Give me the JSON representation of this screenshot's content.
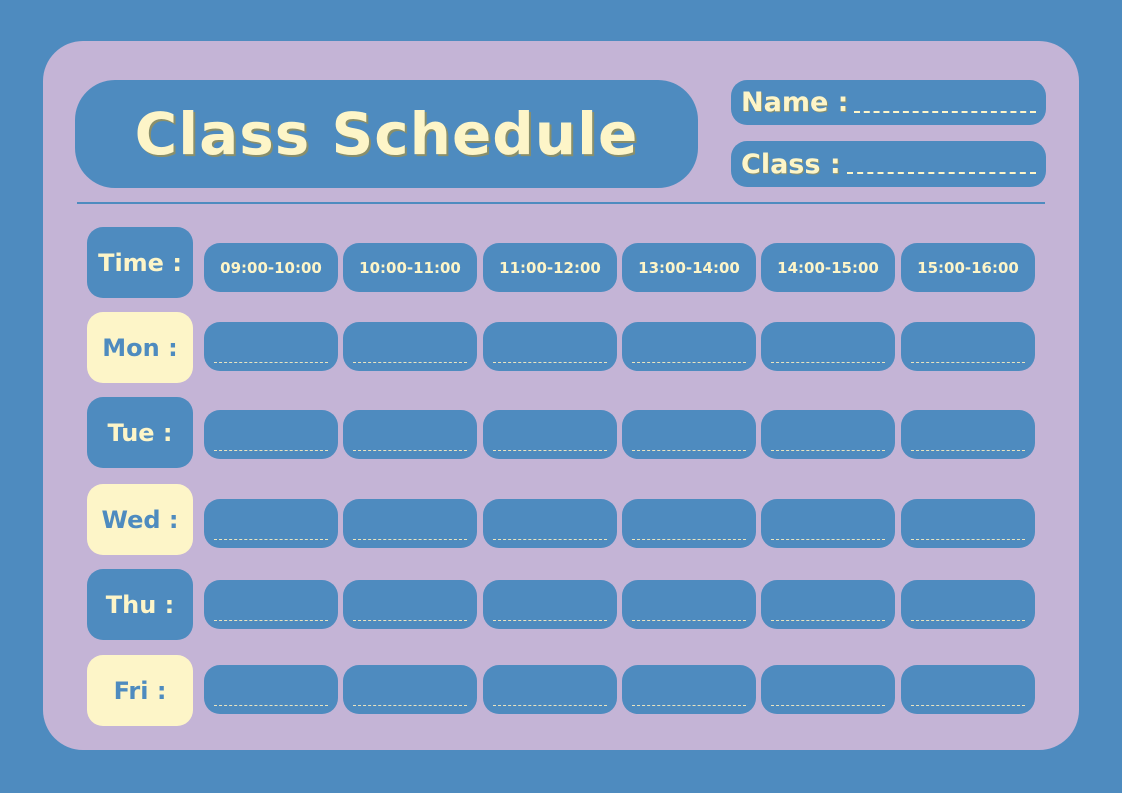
{
  "title": "Class Schedule",
  "fields": {
    "name_label": "Name :",
    "class_label": "Class :"
  },
  "time_label": "Time :",
  "time_slots": [
    "09:00-10:00",
    "10:00-11:00",
    "11:00-12:00",
    "13:00-14:00",
    "14:00-15:00",
    "15:00-16:00"
  ],
  "days": [
    {
      "label": "Mon :",
      "style": "cream"
    },
    {
      "label": "Tue :",
      "style": "blue"
    },
    {
      "label": "Wed :",
      "style": "cream"
    },
    {
      "label": "Thu :",
      "style": "blue"
    },
    {
      "label": "Fri :",
      "style": "cream"
    }
  ],
  "colors": {
    "background": "#4e8bbf",
    "card": "#c4b4d6",
    "accent": "#fdf5c8"
  }
}
